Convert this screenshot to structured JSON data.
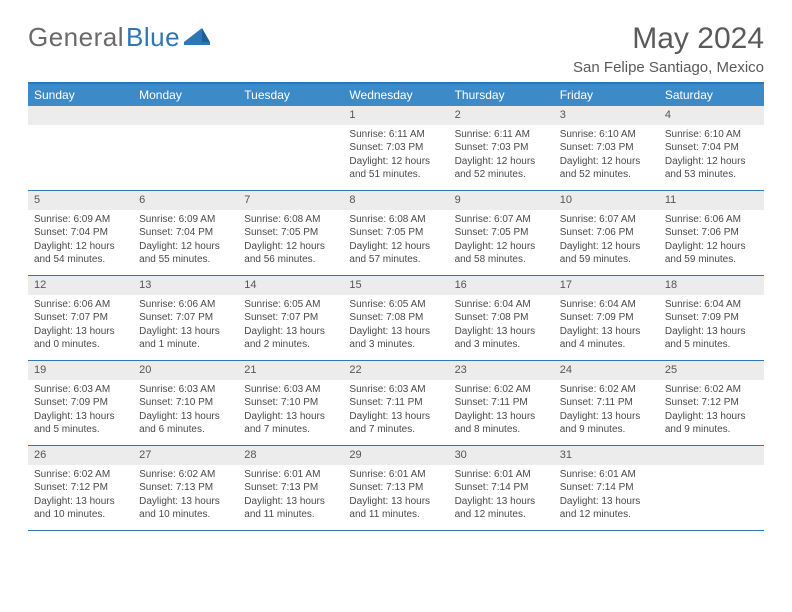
{
  "logo": {
    "text_grey": "General",
    "text_blue": "Blue"
  },
  "title": "May 2024",
  "location": "San Felipe Santiago, Mexico",
  "colors": {
    "header_bg": "#3c8ac8",
    "accent_line": "#2f76b6",
    "daynum_bg": "#ececec",
    "text": "#4a4a4a"
  },
  "day_headers": [
    "Sunday",
    "Monday",
    "Tuesday",
    "Wednesday",
    "Thursday",
    "Friday",
    "Saturday"
  ],
  "weeks": [
    [
      {
        "n": "",
        "sunrise": "",
        "sunset": "",
        "daylight": ""
      },
      {
        "n": "",
        "sunrise": "",
        "sunset": "",
        "daylight": ""
      },
      {
        "n": "",
        "sunrise": "",
        "sunset": "",
        "daylight": ""
      },
      {
        "n": "1",
        "sunrise": "Sunrise: 6:11 AM",
        "sunset": "Sunset: 7:03 PM",
        "daylight": "Daylight: 12 hours and 51 minutes."
      },
      {
        "n": "2",
        "sunrise": "Sunrise: 6:11 AM",
        "sunset": "Sunset: 7:03 PM",
        "daylight": "Daylight: 12 hours and 52 minutes."
      },
      {
        "n": "3",
        "sunrise": "Sunrise: 6:10 AM",
        "sunset": "Sunset: 7:03 PM",
        "daylight": "Daylight: 12 hours and 52 minutes."
      },
      {
        "n": "4",
        "sunrise": "Sunrise: 6:10 AM",
        "sunset": "Sunset: 7:04 PM",
        "daylight": "Daylight: 12 hours and 53 minutes."
      }
    ],
    [
      {
        "n": "5",
        "sunrise": "Sunrise: 6:09 AM",
        "sunset": "Sunset: 7:04 PM",
        "daylight": "Daylight: 12 hours and 54 minutes."
      },
      {
        "n": "6",
        "sunrise": "Sunrise: 6:09 AM",
        "sunset": "Sunset: 7:04 PM",
        "daylight": "Daylight: 12 hours and 55 minutes."
      },
      {
        "n": "7",
        "sunrise": "Sunrise: 6:08 AM",
        "sunset": "Sunset: 7:05 PM",
        "daylight": "Daylight: 12 hours and 56 minutes."
      },
      {
        "n": "8",
        "sunrise": "Sunrise: 6:08 AM",
        "sunset": "Sunset: 7:05 PM",
        "daylight": "Daylight: 12 hours and 57 minutes."
      },
      {
        "n": "9",
        "sunrise": "Sunrise: 6:07 AM",
        "sunset": "Sunset: 7:05 PM",
        "daylight": "Daylight: 12 hours and 58 minutes."
      },
      {
        "n": "10",
        "sunrise": "Sunrise: 6:07 AM",
        "sunset": "Sunset: 7:06 PM",
        "daylight": "Daylight: 12 hours and 59 minutes."
      },
      {
        "n": "11",
        "sunrise": "Sunrise: 6:06 AM",
        "sunset": "Sunset: 7:06 PM",
        "daylight": "Daylight: 12 hours and 59 minutes."
      }
    ],
    [
      {
        "n": "12",
        "sunrise": "Sunrise: 6:06 AM",
        "sunset": "Sunset: 7:07 PM",
        "daylight": "Daylight: 13 hours and 0 minutes."
      },
      {
        "n": "13",
        "sunrise": "Sunrise: 6:06 AM",
        "sunset": "Sunset: 7:07 PM",
        "daylight": "Daylight: 13 hours and 1 minute."
      },
      {
        "n": "14",
        "sunrise": "Sunrise: 6:05 AM",
        "sunset": "Sunset: 7:07 PM",
        "daylight": "Daylight: 13 hours and 2 minutes."
      },
      {
        "n": "15",
        "sunrise": "Sunrise: 6:05 AM",
        "sunset": "Sunset: 7:08 PM",
        "daylight": "Daylight: 13 hours and 3 minutes."
      },
      {
        "n": "16",
        "sunrise": "Sunrise: 6:04 AM",
        "sunset": "Sunset: 7:08 PM",
        "daylight": "Daylight: 13 hours and 3 minutes."
      },
      {
        "n": "17",
        "sunrise": "Sunrise: 6:04 AM",
        "sunset": "Sunset: 7:09 PM",
        "daylight": "Daylight: 13 hours and 4 minutes."
      },
      {
        "n": "18",
        "sunrise": "Sunrise: 6:04 AM",
        "sunset": "Sunset: 7:09 PM",
        "daylight": "Daylight: 13 hours and 5 minutes."
      }
    ],
    [
      {
        "n": "19",
        "sunrise": "Sunrise: 6:03 AM",
        "sunset": "Sunset: 7:09 PM",
        "daylight": "Daylight: 13 hours and 5 minutes."
      },
      {
        "n": "20",
        "sunrise": "Sunrise: 6:03 AM",
        "sunset": "Sunset: 7:10 PM",
        "daylight": "Daylight: 13 hours and 6 minutes."
      },
      {
        "n": "21",
        "sunrise": "Sunrise: 6:03 AM",
        "sunset": "Sunset: 7:10 PM",
        "daylight": "Daylight: 13 hours and 7 minutes."
      },
      {
        "n": "22",
        "sunrise": "Sunrise: 6:03 AM",
        "sunset": "Sunset: 7:11 PM",
        "daylight": "Daylight: 13 hours and 7 minutes."
      },
      {
        "n": "23",
        "sunrise": "Sunrise: 6:02 AM",
        "sunset": "Sunset: 7:11 PM",
        "daylight": "Daylight: 13 hours and 8 minutes."
      },
      {
        "n": "24",
        "sunrise": "Sunrise: 6:02 AM",
        "sunset": "Sunset: 7:11 PM",
        "daylight": "Daylight: 13 hours and 9 minutes."
      },
      {
        "n": "25",
        "sunrise": "Sunrise: 6:02 AM",
        "sunset": "Sunset: 7:12 PM",
        "daylight": "Daylight: 13 hours and 9 minutes."
      }
    ],
    [
      {
        "n": "26",
        "sunrise": "Sunrise: 6:02 AM",
        "sunset": "Sunset: 7:12 PM",
        "daylight": "Daylight: 13 hours and 10 minutes."
      },
      {
        "n": "27",
        "sunrise": "Sunrise: 6:02 AM",
        "sunset": "Sunset: 7:13 PM",
        "daylight": "Daylight: 13 hours and 10 minutes."
      },
      {
        "n": "28",
        "sunrise": "Sunrise: 6:01 AM",
        "sunset": "Sunset: 7:13 PM",
        "daylight": "Daylight: 13 hours and 11 minutes."
      },
      {
        "n": "29",
        "sunrise": "Sunrise: 6:01 AM",
        "sunset": "Sunset: 7:13 PM",
        "daylight": "Daylight: 13 hours and 11 minutes."
      },
      {
        "n": "30",
        "sunrise": "Sunrise: 6:01 AM",
        "sunset": "Sunset: 7:14 PM",
        "daylight": "Daylight: 13 hours and 12 minutes."
      },
      {
        "n": "31",
        "sunrise": "Sunrise: 6:01 AM",
        "sunset": "Sunset: 7:14 PM",
        "daylight": "Daylight: 13 hours and 12 minutes."
      },
      {
        "n": "",
        "sunrise": "",
        "sunset": "",
        "daylight": ""
      }
    ]
  ]
}
